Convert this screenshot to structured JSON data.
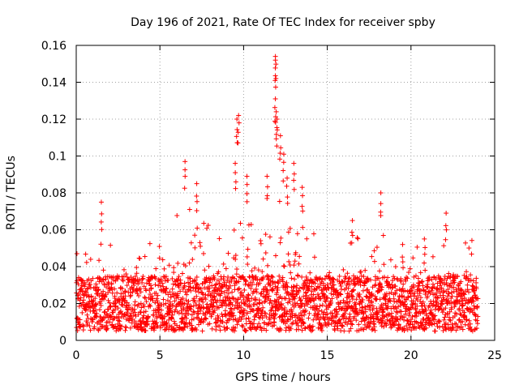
{
  "chart_data": {
    "type": "scatter",
    "title": "Day 196 of 2021, Rate Of TEC Index for receiver spby",
    "xlabel": "GPS time / hours",
    "ylabel": "ROTI / TECUs",
    "xlim": [
      0,
      25
    ],
    "ylim": [
      0,
      0.16
    ],
    "xticks": [
      0,
      5,
      10,
      15,
      20,
      25
    ],
    "xtick_labels": [
      "0",
      "5",
      "10",
      "15",
      "20",
      "25"
    ],
    "yticks": [
      0,
      0.02,
      0.04,
      0.06,
      0.08,
      0.1,
      0.12,
      0.14,
      0.16
    ],
    "ytick_labels": [
      "0",
      "0.02",
      "0.04",
      "0.06",
      "0.08",
      "0.1",
      "0.12",
      "0.14",
      "0.16"
    ],
    "grid": true,
    "marker": "+",
    "marker_color": "#ff0000",
    "data_coverage_hours": [
      0,
      24
    ],
    "baseline_range": [
      0.005,
      0.035
    ],
    "notable_points": [
      {
        "x": 1.5,
        "y": 0.075
      },
      {
        "x": 6.5,
        "y": 0.097
      },
      {
        "x": 7.2,
        "y": 0.085
      },
      {
        "x": 9.5,
        "y": 0.096
      },
      {
        "x": 9.6,
        "y": 0.12
      },
      {
        "x": 9.7,
        "y": 0.122
      },
      {
        "x": 10.2,
        "y": 0.089
      },
      {
        "x": 11.4,
        "y": 0.089
      },
      {
        "x": 11.9,
        "y": 0.154
      },
      {
        "x": 11.9,
        "y": 0.152
      },
      {
        "x": 11.9,
        "y": 0.131
      },
      {
        "x": 11.95,
        "y": 0.124
      },
      {
        "x": 12.0,
        "y": 0.12
      },
      {
        "x": 12.2,
        "y": 0.111
      },
      {
        "x": 12.4,
        "y": 0.101
      },
      {
        "x": 12.6,
        "y": 0.088
      },
      {
        "x": 13.0,
        "y": 0.096
      },
      {
        "x": 13.5,
        "y": 0.083
      },
      {
        "x": 16.5,
        "y": 0.065
      },
      {
        "x": 18.2,
        "y": 0.08
      },
      {
        "x": 19.5,
        "y": 0.052
      },
      {
        "x": 20.8,
        "y": 0.055
      },
      {
        "x": 22.1,
        "y": 0.069
      }
    ]
  }
}
